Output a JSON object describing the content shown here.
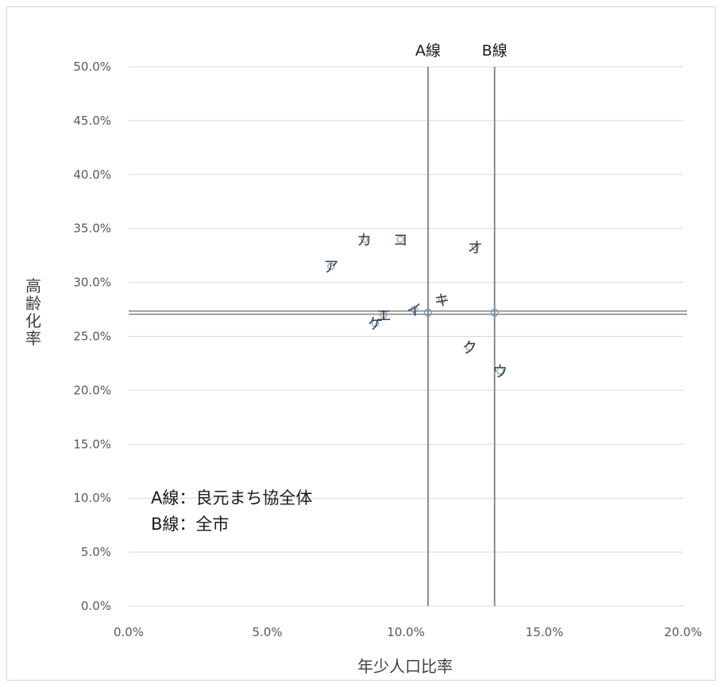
{
  "chart_data": {
    "type": "scatter",
    "title": "",
    "xlabel": "年少人口比率",
    "ylabel": "高齢化率",
    "xlim": [
      0,
      0.2
    ],
    "ylim": [
      0,
      0.5
    ],
    "x_ticks": [
      0,
      0.05,
      0.1,
      0.15,
      0.2
    ],
    "x_tick_labels": [
      "0.0%",
      "5.0%",
      "10.0%",
      "15.0%",
      "20.0%"
    ],
    "y_ticks": [
      0,
      0.05,
      0.1,
      0.15,
      0.2,
      0.25,
      0.3,
      0.35,
      0.4,
      0.45,
      0.5
    ],
    "y_tick_labels": [
      "0.0%",
      "5.0%",
      "10.0%",
      "15.0%",
      "20.0%",
      "25.0%",
      "30.0%",
      "35.0%",
      "40.0%",
      "45.0%",
      "50.0%"
    ],
    "grid": "horizontal",
    "colors": {
      "grid": "#d9d9d9",
      "reference_line": "#7f7f7f",
      "marker": "#5b9bd5",
      "text": "#404040"
    },
    "points": [
      {
        "label": "ア",
        "x": 0.073,
        "y": 0.315
      },
      {
        "label": "イ",
        "x": 0.103,
        "y": 0.275
      },
      {
        "label": "ウ",
        "x": 0.134,
        "y": 0.218
      },
      {
        "label": "エ",
        "x": 0.092,
        "y": 0.27
      },
      {
        "label": "オ",
        "x": 0.125,
        "y": 0.333
      },
      {
        "label": "カ",
        "x": 0.085,
        "y": 0.34
      },
      {
        "label": "キ",
        "x": 0.113,
        "y": 0.284
      },
      {
        "label": "ク",
        "x": 0.123,
        "y": 0.24
      },
      {
        "label": "ケ",
        "x": 0.089,
        "y": 0.262
      },
      {
        "label": "コ",
        "x": 0.098,
        "y": 0.34
      }
    ],
    "reference_lines": [
      {
        "label": "A線",
        "x": 0.108,
        "y": 0.272
      },
      {
        "label": "B線",
        "x": 0.132,
        "y": 0.272
      }
    ],
    "annotations": [
      "A線：良元まち協全体",
      "B線：全市"
    ]
  }
}
